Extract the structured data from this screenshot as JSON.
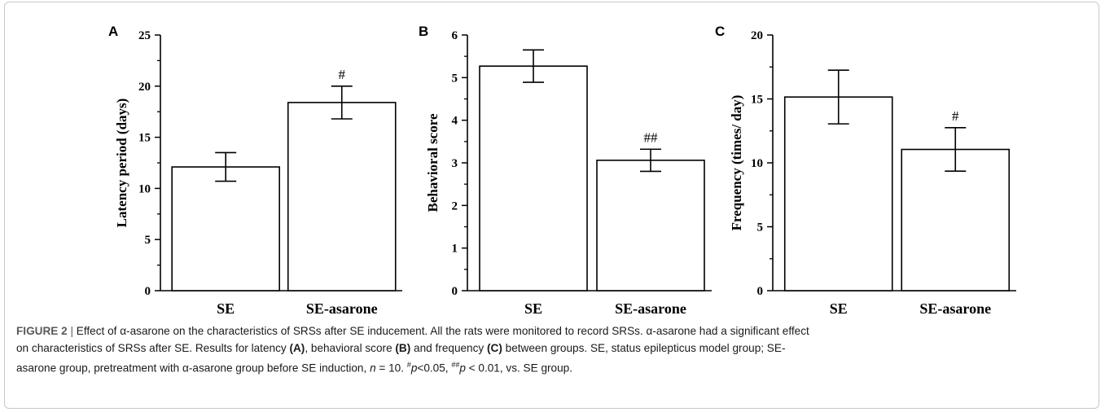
{
  "chart_data": [
    {
      "type": "bar",
      "panel": "A",
      "ylabel": "Latency period (days)",
      "categories": [
        "SE",
        "SE-asarone"
      ],
      "values": [
        12.1,
        18.4
      ],
      "errors": [
        1.4,
        1.6
      ],
      "annotations": [
        "",
        "#"
      ],
      "ylim": [
        0,
        25
      ],
      "yticks": [
        0,
        5,
        10,
        15,
        20,
        25
      ],
      "ytick_labels": [
        "0",
        "5",
        "10",
        "15",
        "20",
        "25"
      ],
      "minor_step": 2.5
    },
    {
      "type": "bar",
      "panel": "B",
      "ylabel": "Behavioral score",
      "categories": [
        "SE",
        "SE-asarone"
      ],
      "values": [
        5.27,
        3.06
      ],
      "errors": [
        0.38,
        0.26
      ],
      "annotations": [
        "",
        "##"
      ],
      "ylim": [
        0,
        6
      ],
      "yticks": [
        0,
        1,
        2,
        3,
        4,
        5,
        6
      ],
      "ytick_labels": [
        "0",
        "1",
        "2",
        "3",
        "4",
        "5",
        "6"
      ],
      "minor_step": 0.5
    },
    {
      "type": "bar",
      "panel": "C",
      "ylabel": "Frequency (times/ day)",
      "categories": [
        "SE",
        "SE-asarone"
      ],
      "values": [
        15.15,
        11.05
      ],
      "errors": [
        2.1,
        1.7
      ],
      "annotations": [
        "",
        "#"
      ],
      "ylim": [
        0,
        20
      ],
      "yticks": [
        0,
        5,
        10,
        15,
        20
      ],
      "ytick_labels": [
        "0",
        "5",
        "10",
        "15",
        "20"
      ],
      "minor_step": 2.5
    }
  ],
  "caption": {
    "label": "FIGURE 2",
    "separator": " | ",
    "line1": "Effect of α-asarone on the characteristics of SRSs after SE inducement. All the rats were monitored to record SRSs. α-asarone had a significant effect",
    "line2_a": "on characteristics of SRSs after SE. Results for latency ",
    "panel_a": "(A)",
    "line2_b": ", behavioral score ",
    "panel_b": "(B)",
    "line2_c": " and frequency ",
    "panel_c": "(C)",
    "line2_d": " between groups. SE, status epilepticus model group; SE-",
    "line3": "asarone group, pretreatment with α-asarone group before SE induction, ",
    "n_symbol": "n",
    "n_value": " = 10. ",
    "sig1_mark": "#",
    "p_symbol": "p",
    "sig1_text": "<0.05, ",
    "sig2_mark": "##",
    "sig2_text": " < 0.01, vs. SE group."
  }
}
